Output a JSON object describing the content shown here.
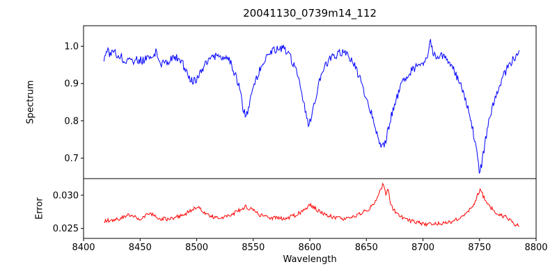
{
  "chart_data": {
    "type": "line",
    "title": "20041130_0739m14_112",
    "xlabel": "Wavelength",
    "xlim": [
      8400,
      8800
    ],
    "xtick_values": [
      8400,
      8450,
      8500,
      8550,
      8600,
      8650,
      8700,
      8750,
      8800
    ],
    "xtick_labels": [
      "8400",
      "8450",
      "8500",
      "8550",
      "8600",
      "8650",
      "8700",
      "8750",
      "8800"
    ],
    "legend": "none",
    "grid": false,
    "panels": [
      {
        "name": "spectrum",
        "ylabel": "Spectrum",
        "color": "#0000ff",
        "ylim": [
          0.645,
          1.055
        ],
        "ytick_values": [
          0.7,
          0.8,
          0.9,
          1.0
        ],
        "ytick_labels": [
          "0.7",
          "0.8",
          "0.9",
          "1.0"
        ],
        "noise": 0.011,
        "anchors": [
          [
            8418,
            0.965
          ],
          [
            8421,
            0.99
          ],
          [
            8424,
            0.975
          ],
          [
            8427,
            0.985
          ],
          [
            8430,
            0.97
          ],
          [
            8433,
            0.975
          ],
          [
            8436,
            0.96
          ],
          [
            8440,
            0.97
          ],
          [
            8444,
            0.955
          ],
          [
            8448,
            0.965
          ],
          [
            8452,
            0.96
          ],
          [
            8456,
            0.97
          ],
          [
            8460,
            0.975
          ],
          [
            8464,
            0.985
          ],
          [
            8468,
            0.955
          ],
          [
            8472,
            0.95
          ],
          [
            8476,
            0.96
          ],
          [
            8480,
            0.972
          ],
          [
            8484,
            0.968
          ],
          [
            8488,
            0.95
          ],
          [
            8492,
            0.928
          ],
          [
            8496,
            0.905
          ],
          [
            8499,
            0.908
          ],
          [
            8502,
            0.925
          ],
          [
            8506,
            0.945
          ],
          [
            8510,
            0.958
          ],
          [
            8514,
            0.97
          ],
          [
            8518,
            0.975
          ],
          [
            8522,
            0.968
          ],
          [
            8526,
            0.972
          ],
          [
            8530,
            0.955
          ],
          [
            8534,
            0.925
          ],
          [
            8538,
            0.885
          ],
          [
            8541,
            0.835
          ],
          [
            8543,
            0.812
          ],
          [
            8545,
            0.825
          ],
          [
            8548,
            0.862
          ],
          [
            8552,
            0.905
          ],
          [
            8556,
            0.938
          ],
          [
            8560,
            0.962
          ],
          [
            8564,
            0.978
          ],
          [
            8568,
            0.988
          ],
          [
            8572,
            0.992
          ],
          [
            8576,
            0.995
          ],
          [
            8580,
            0.985
          ],
          [
            8584,
            0.962
          ],
          [
            8588,
            0.932
          ],
          [
            8592,
            0.885
          ],
          [
            8596,
            0.825
          ],
          [
            8599,
            0.792
          ],
          [
            8601,
            0.8
          ],
          [
            8604,
            0.845
          ],
          [
            8608,
            0.898
          ],
          [
            8612,
            0.935
          ],
          [
            8616,
            0.958
          ],
          [
            8620,
            0.972
          ],
          [
            8624,
            0.978
          ],
          [
            8628,
            0.985
          ],
          [
            8632,
            0.982
          ],
          [
            8636,
            0.968
          ],
          [
            8640,
            0.945
          ],
          [
            8644,
            0.915
          ],
          [
            8648,
            0.878
          ],
          [
            8652,
            0.845
          ],
          [
            8656,
            0.802
          ],
          [
            8660,
            0.758
          ],
          [
            8663,
            0.725
          ],
          [
            8666,
            0.735
          ],
          [
            8669,
            0.772
          ],
          [
            8672,
            0.815
          ],
          [
            8676,
            0.855
          ],
          [
            8680,
            0.888
          ],
          [
            8684,
            0.912
          ],
          [
            8688,
            0.928
          ],
          [
            8692,
            0.94
          ],
          [
            8696,
            0.948
          ],
          [
            8700,
            0.955
          ],
          [
            8704,
            0.97
          ],
          [
            8706,
            1.02
          ],
          [
            8708,
            0.99
          ],
          [
            8712,
            0.975
          ],
          [
            8716,
            0.978
          ],
          [
            8720,
            0.968
          ],
          [
            8724,
            0.952
          ],
          [
            8728,
            0.932
          ],
          [
            8732,
            0.905
          ],
          [
            8736,
            0.872
          ],
          [
            8740,
            0.832
          ],
          [
            8744,
            0.778
          ],
          [
            8747,
            0.722
          ],
          [
            8750,
            0.662
          ],
          [
            8752,
            0.685
          ],
          [
            8755,
            0.742
          ],
          [
            8758,
            0.795
          ],
          [
            8762,
            0.845
          ],
          [
            8766,
            0.882
          ],
          [
            8770,
            0.912
          ],
          [
            8774,
            0.938
          ],
          [
            8778,
            0.958
          ],
          [
            8782,
            0.972
          ],
          [
            8785,
            0.985
          ]
        ]
      },
      {
        "name": "error",
        "ylabel": "Error",
        "color": "#ff0000",
        "ylim": [
          0.0235,
          0.0325
        ],
        "ytick_values": [
          0.025,
          0.03
        ],
        "ytick_labels": [
          "0.025",
          "0.030"
        ],
        "noise": 0.0003,
        "anchors": [
          [
            8418,
            0.026
          ],
          [
            8424,
            0.0263
          ],
          [
            8430,
            0.0264
          ],
          [
            8436,
            0.0267
          ],
          [
            8442,
            0.0271
          ],
          [
            8446,
            0.0266
          ],
          [
            8450,
            0.0264
          ],
          [
            8455,
            0.0269
          ],
          [
            8460,
            0.0272
          ],
          [
            8464,
            0.0268
          ],
          [
            8468,
            0.0265
          ],
          [
            8474,
            0.0264
          ],
          [
            8480,
            0.0266
          ],
          [
            8486,
            0.0269
          ],
          [
            8492,
            0.0274
          ],
          [
            8497,
            0.0279
          ],
          [
            8502,
            0.0281
          ],
          [
            8506,
            0.0276
          ],
          [
            8510,
            0.0271
          ],
          [
            8515,
            0.0267
          ],
          [
            8520,
            0.0266
          ],
          [
            8526,
            0.0268
          ],
          [
            8532,
            0.0272
          ],
          [
            8538,
            0.0278
          ],
          [
            8543,
            0.0283
          ],
          [
            8548,
            0.0279
          ],
          [
            8553,
            0.0273
          ],
          [
            8558,
            0.0269
          ],
          [
            8563,
            0.0266
          ],
          [
            8568,
            0.0266
          ],
          [
            8574,
            0.0265
          ],
          [
            8580,
            0.0266
          ],
          [
            8586,
            0.0269
          ],
          [
            8592,
            0.0274
          ],
          [
            8597,
            0.0281
          ],
          [
            8600,
            0.0286
          ],
          [
            8604,
            0.0281
          ],
          [
            8609,
            0.0275
          ],
          [
            8614,
            0.0271
          ],
          [
            8620,
            0.0267
          ],
          [
            8626,
            0.0265
          ],
          [
            8632,
            0.0265
          ],
          [
            8638,
            0.0268
          ],
          [
            8644,
            0.0272
          ],
          [
            8650,
            0.0277
          ],
          [
            8655,
            0.0283
          ],
          [
            8659,
            0.0292
          ],
          [
            8662,
            0.0305
          ],
          [
            8665,
            0.0318
          ],
          [
            8667,
            0.03
          ],
          [
            8669,
            0.0312
          ],
          [
            8671,
            0.0288
          ],
          [
            8674,
            0.0278
          ],
          [
            8678,
            0.0271
          ],
          [
            8682,
            0.0266
          ],
          [
            8687,
            0.0262
          ],
          [
            8692,
            0.026
          ],
          [
            8697,
            0.0258
          ],
          [
            8702,
            0.0257
          ],
          [
            8707,
            0.0256
          ],
          [
            8712,
            0.0257
          ],
          [
            8717,
            0.0257
          ],
          [
            8722,
            0.0259
          ],
          [
            8727,
            0.0261
          ],
          [
            8732,
            0.0265
          ],
          [
            8737,
            0.0271
          ],
          [
            8742,
            0.0279
          ],
          [
            8746,
            0.0289
          ],
          [
            8749,
            0.0304
          ],
          [
            8751,
            0.031
          ],
          [
            8753,
            0.03
          ],
          [
            8756,
            0.029
          ],
          [
            8760,
            0.0281
          ],
          [
            8764,
            0.0275
          ],
          [
            8768,
            0.0271
          ],
          [
            8772,
            0.0268
          ],
          [
            8776,
            0.0264
          ],
          [
            8780,
            0.0257
          ],
          [
            8785,
            0.0253
          ]
        ]
      }
    ]
  }
}
